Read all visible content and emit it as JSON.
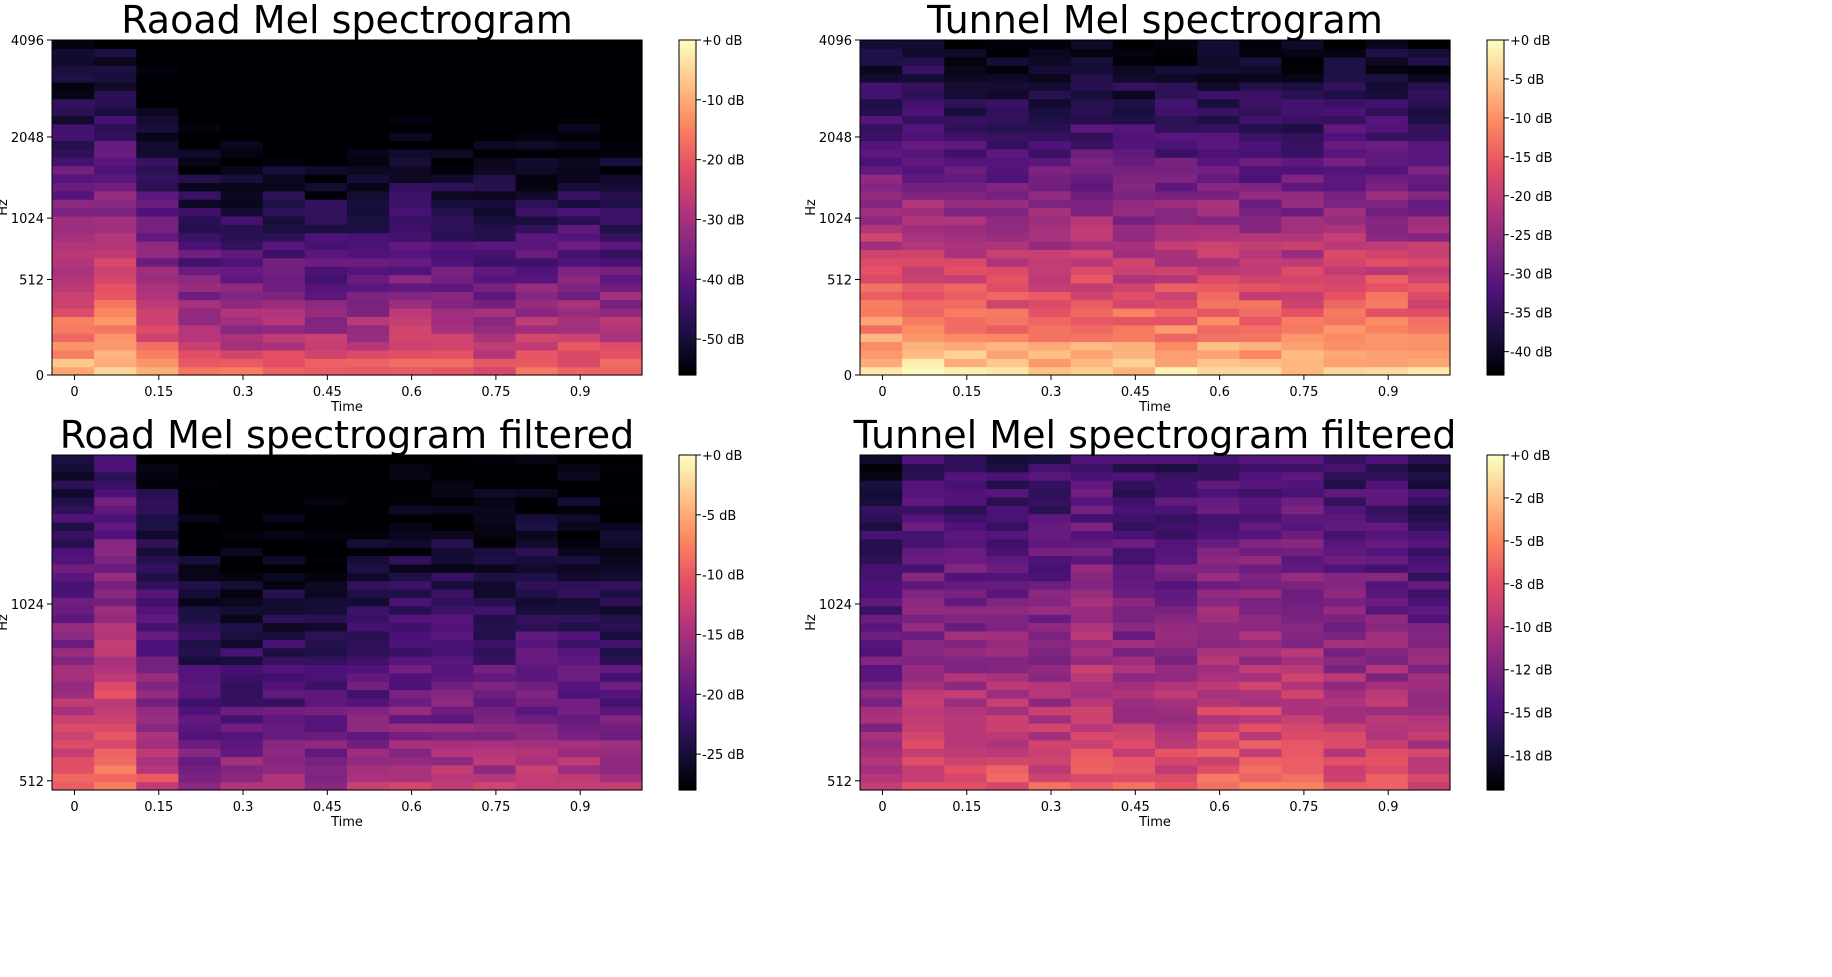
{
  "chart_data": [
    {
      "type": "heatmap",
      "title": "Raoad Mel spectrogram",
      "xlabel": "Time",
      "ylabel": "Hz",
      "x_ticks": [
        "0",
        "0.15",
        "0.3",
        "0.45",
        "0.6",
        "0.75",
        "0.9"
      ],
      "x_tick_values": [
        0,
        0.15,
        0.3,
        0.45,
        0.6,
        0.75,
        0.9
      ],
      "xlim": [
        -0.04,
        1.01
      ],
      "y_scale": "mel",
      "y_ticks": [
        "0",
        "512",
        "1024",
        "2048",
        "4096"
      ],
      "y_tick_values": [
        0,
        512,
        1024,
        2048,
        4096
      ],
      "ylim": [
        0,
        4096
      ],
      "colorbar": {
        "ticks": [
          "+0 dB",
          "-10 dB",
          "-20 dB",
          "-30 dB",
          "-40 dB",
          "-50 dB"
        ],
        "tick_values": [
          0,
          -10,
          -20,
          -30,
          -40,
          -50
        ],
        "range": [
          -56,
          0
        ]
      },
      "time_frames": 14,
      "mel_bins": 40,
      "level_profile": {
        "frame_offsets_db": [
          -2,
          1,
          -8,
          -14,
          -15,
          -15,
          -16,
          -15,
          -13,
          -14,
          -15,
          -14,
          -13,
          -14
        ],
        "bin_top_db": -54,
        "bin_bottom_db": -4
      }
    },
    {
      "type": "heatmap",
      "title": "Tunnel Mel spectrogram",
      "xlabel": "Time",
      "ylabel": "Hz",
      "x_ticks": [
        "0",
        "0.15",
        "0.3",
        "0.45",
        "0.6",
        "0.75",
        "0.9"
      ],
      "x_tick_values": [
        0,
        0.15,
        0.3,
        0.45,
        0.6,
        0.75,
        0.9
      ],
      "xlim": [
        -0.04,
        1.01
      ],
      "y_scale": "mel",
      "y_ticks": [
        "0",
        "512",
        "1024",
        "2048",
        "4096"
      ],
      "y_tick_values": [
        0,
        512,
        1024,
        2048,
        4096
      ],
      "ylim": [
        0,
        4096
      ],
      "colorbar": {
        "ticks": [
          "+0 dB",
          "-5 dB",
          "-10 dB",
          "-15 dB",
          "-20 dB",
          "-25 dB",
          "-30 dB",
          "-35 dB",
          "-40 dB"
        ],
        "tick_values": [
          0,
          -5,
          -10,
          -15,
          -20,
          -25,
          -30,
          -35,
          -40
        ],
        "range": [
          -43,
          0
        ]
      },
      "time_frames": 14,
      "mel_bins": 40,
      "level_profile": {
        "frame_offsets_db": [
          0,
          0,
          -1,
          -2,
          -2,
          -1,
          -2,
          -2,
          -1,
          -2,
          -2,
          -1,
          -1,
          -2
        ],
        "bin_top_db": -40,
        "bin_bottom_db": -2
      }
    },
    {
      "type": "heatmap",
      "title": "Road Mel spectrogram filtered",
      "xlabel": "Time",
      "ylabel": "Hz",
      "x_ticks": [
        "0",
        "0.15",
        "0.3",
        "0.45",
        "0.6",
        "0.75",
        "0.9"
      ],
      "x_tick_values": [
        0,
        0.15,
        0.3,
        0.45,
        0.6,
        0.75,
        0.9
      ],
      "xlim": [
        -0.04,
        1.01
      ],
      "y_scale": "mel",
      "y_ticks": [
        "512",
        "1024"
      ],
      "y_tick_values": [
        512,
        1024
      ],
      "ylim": [
        490,
        1620
      ],
      "colorbar": {
        "ticks": [
          "+0 dB",
          "-5 dB",
          "-10 dB",
          "-15 dB",
          "-20 dB",
          "-25 dB"
        ],
        "tick_values": [
          0,
          -5,
          -10,
          -15,
          -20,
          -25
        ],
        "range": [
          -28,
          0
        ]
      },
      "time_frames": 14,
      "mel_bins": 40,
      "level_profile": {
        "frame_offsets_db": [
          -1,
          2,
          -3,
          -7,
          -7,
          -7,
          -7,
          -6,
          -5,
          -5,
          -5,
          -5,
          -5,
          -6
        ],
        "bin_top_db": -24,
        "bin_bottom_db": -8
      }
    },
    {
      "type": "heatmap",
      "title": "Tunnel Mel spectrogram filtered",
      "xlabel": "Time",
      "ylabel": "Hz",
      "x_ticks": [
        "0",
        "0.15",
        "0.3",
        "0.45",
        "0.6",
        "0.75",
        "0.9"
      ],
      "x_tick_values": [
        0,
        0.15,
        0.3,
        0.45,
        0.6,
        0.75,
        0.9
      ],
      "xlim": [
        -0.04,
        1.01
      ],
      "y_scale": "mel",
      "y_ticks": [
        "512",
        "1024"
      ],
      "y_tick_values": [
        512,
        1024
      ],
      "ylim": [
        490,
        1620
      ],
      "colorbar": {
        "ticks": [
          "+0 dB",
          "-2 dB",
          "-5 dB",
          "-8 dB",
          "-10 dB",
          "-12 dB",
          "-15 dB",
          "-18 dB"
        ],
        "tick_values": [
          0,
          -2.5,
          -5,
          -7.5,
          -10,
          -12.5,
          -15,
          -17.5
        ],
        "range": [
          -19.5,
          0
        ]
      },
      "time_frames": 14,
      "mel_bins": 40,
      "level_profile": {
        "frame_offsets_db": [
          -3,
          -1,
          -1,
          -1,
          -1,
          0,
          -1,
          -1,
          0,
          0,
          0,
          -1,
          -1,
          -2
        ],
        "bin_top_db": -15,
        "bin_bottom_db": -6
      }
    }
  ]
}
